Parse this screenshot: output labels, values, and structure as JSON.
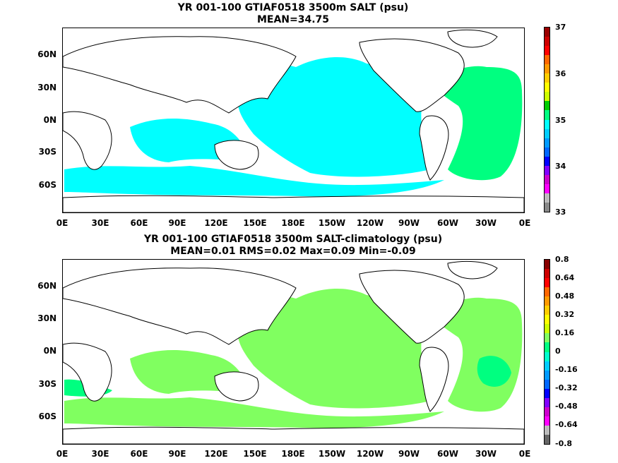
{
  "panels": [
    {
      "title_line1": "YR 001-100 GTIAF0518 3500m SALT (psu)",
      "title_line2": "MEAN=34.75",
      "lat_ticks": [
        "60N",
        "30N",
        "0N",
        "30S",
        "60S"
      ],
      "lon_ticks": [
        "0E",
        "30E",
        "60E",
        "90E",
        "120E",
        "150E",
        "180E",
        "150W",
        "120W",
        "90W",
        "60W",
        "30W",
        "0E"
      ],
      "colorbar_labels": [
        "37",
        "36",
        "35",
        "34",
        "33"
      ],
      "fill_color": "#00ffff",
      "atl_fill_color": "#00ff80",
      "colorbar_colors": [
        "#888888",
        "#bbbbbb",
        "#ff00ff",
        "#cc00cc",
        "#8000ff",
        "#0000ff",
        "#0066ff",
        "#0099ff",
        "#00ccff",
        "#00ffff",
        "#00ff80",
        "#00cc00",
        "#ccff00",
        "#ffff00",
        "#ffcc00",
        "#ff9900",
        "#ff6600",
        "#ff0000",
        "#cc0000",
        "#990000"
      ]
    },
    {
      "title_line1": "YR 001-100 GTIAF0518 3500m SALT-climatology (psu)",
      "title_line2": "MEAN=0.01   RMS=0.02   Max=0.09   Min=-0.09",
      "lat_ticks": [
        "60N",
        "30N",
        "0N",
        "30S",
        "60S"
      ],
      "lon_ticks": [
        "0E",
        "30E",
        "60E",
        "90E",
        "120E",
        "150E",
        "180E",
        "150W",
        "120W",
        "90W",
        "60W",
        "30W",
        "0E"
      ],
      "colorbar_labels": [
        "0.8",
        "0.64",
        "0.48",
        "0.32",
        "0.16",
        "0",
        "-0.16",
        "-0.32",
        "-0.48",
        "-0.64",
        "-0.8"
      ],
      "fill_color": "#80ff60",
      "atl_fill_color": "#00ff80",
      "colorbar_colors": [
        "#666666",
        "#bbbbbb",
        "#ff00ff",
        "#cc00cc",
        "#8000ff",
        "#0000ff",
        "#0066ff",
        "#0099ff",
        "#00ccff",
        "#00ffcc",
        "#00ff80",
        "#80ff60",
        "#ccff00",
        "#ffff00",
        "#ffcc00",
        "#ff9900",
        "#ff6600",
        "#ff0000",
        "#cc0000",
        "#880000"
      ]
    }
  ]
}
